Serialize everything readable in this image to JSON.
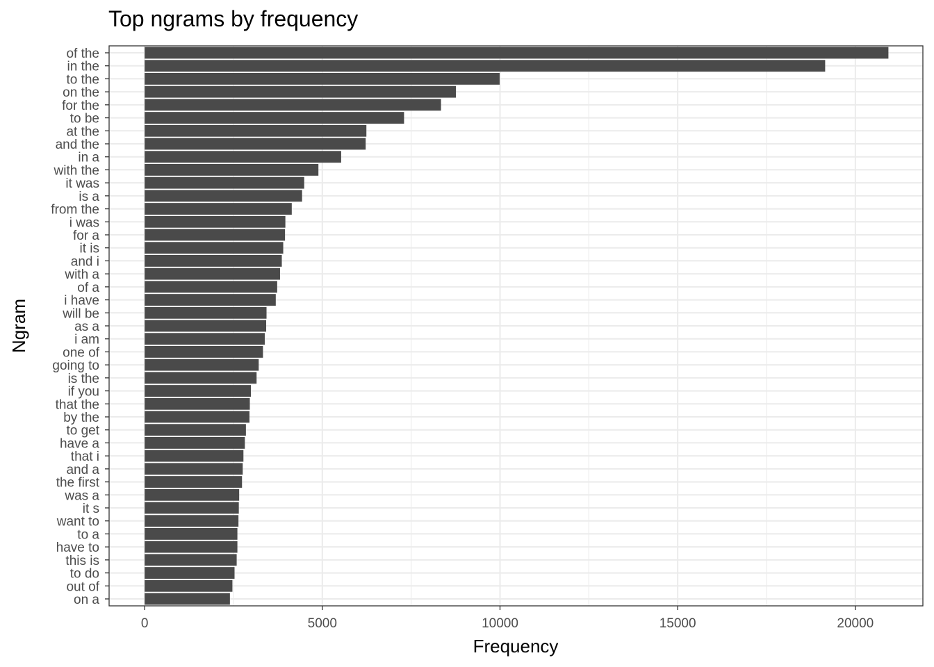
{
  "chart_data": {
    "type": "bar",
    "orientation": "horizontal",
    "title": "Top ngrams by frequency",
    "xlabel": "Frequency",
    "ylabel": "Ngram",
    "xlim": [
      -1000,
      21900
    ],
    "x_ticks": [
      0,
      5000,
      10000,
      15000,
      20000
    ],
    "x_tick_labels": [
      "0",
      "5000",
      "10000",
      "15000",
      "20000"
    ],
    "grid": true,
    "bar_color": "#4a4a4a",
    "grid_color": "#ebebeb",
    "categories": [
      "of the",
      "in the",
      "to the",
      "on the",
      "for the",
      "to be",
      "at the",
      "and the",
      "in a",
      "with the",
      "it was",
      "is a",
      "from the",
      "i was",
      "for a",
      "it is",
      "and i",
      "with a",
      "of a",
      "i have",
      "will be",
      "as a",
      "i am",
      "one of",
      "going to",
      "is the",
      "if you",
      "that the",
      "by the",
      "to get",
      "have a",
      "that i",
      "and a",
      "the first",
      "was a",
      "it s",
      "want to",
      "to a",
      "have to",
      "this is",
      "to do",
      "out of",
      "on a"
    ],
    "values": [
      20930,
      19150,
      9990,
      8760,
      8340,
      7300,
      6240,
      6220,
      5530,
      4890,
      4490,
      4430,
      4140,
      3960,
      3950,
      3900,
      3860,
      3810,
      3730,
      3690,
      3430,
      3420,
      3380,
      3330,
      3210,
      3150,
      2990,
      2960,
      2950,
      2850,
      2820,
      2780,
      2760,
      2740,
      2660,
      2650,
      2640,
      2610,
      2610,
      2590,
      2530,
      2470,
      2400
    ]
  }
}
